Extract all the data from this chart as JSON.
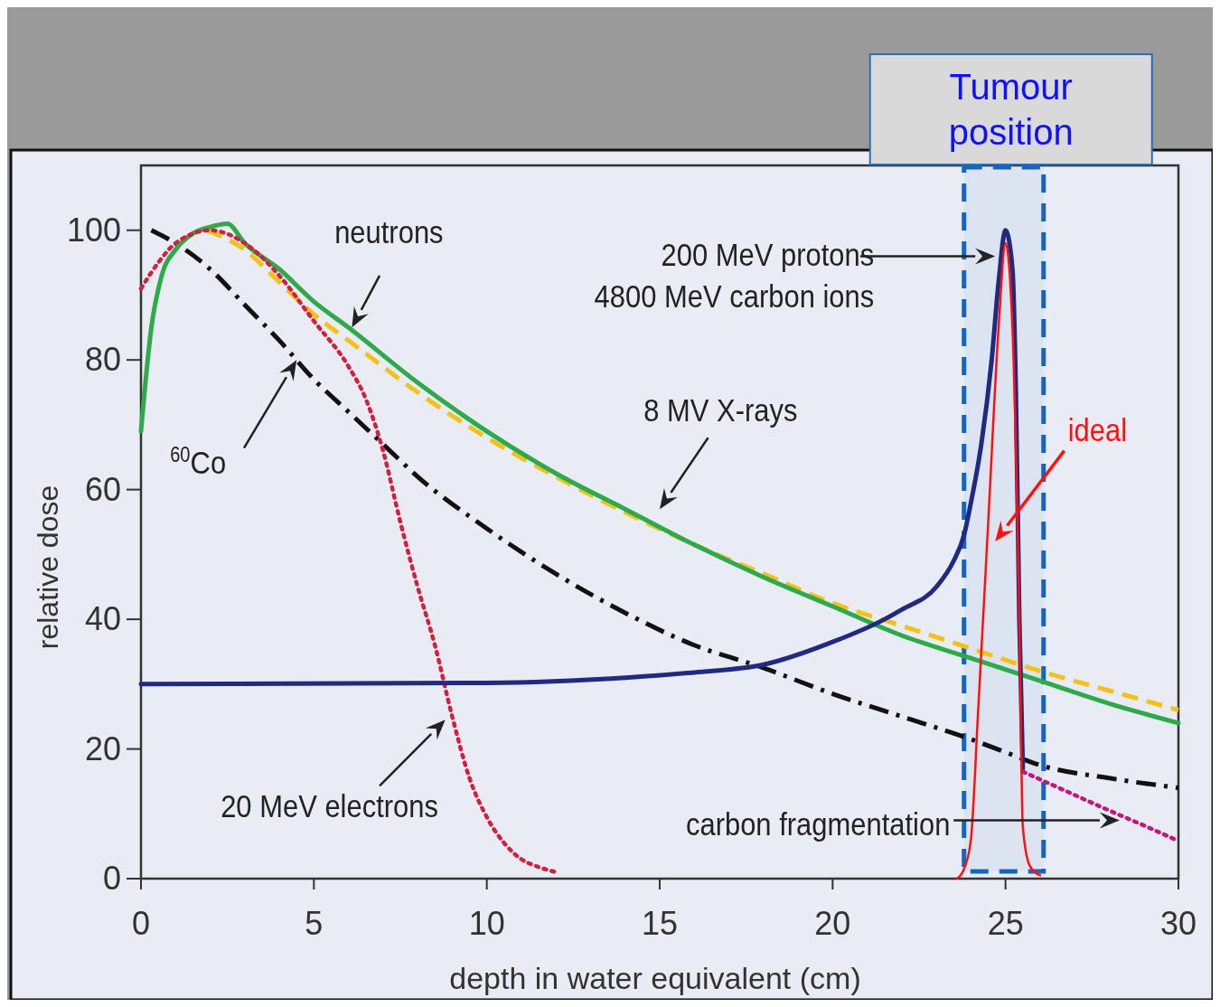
{
  "chart_data": {
    "type": "line",
    "xlabel": "depth in water equivalent (cm)",
    "ylabel": "relative dose",
    "xlim": [
      0,
      30
    ],
    "ylim": [
      0,
      110
    ],
    "xticks": [
      0,
      5,
      10,
      15,
      20,
      25,
      30
    ],
    "yticks": [
      0,
      20,
      40,
      60,
      80,
      100
    ],
    "grid": false,
    "marker": "none",
    "series": [
      {
        "color": "#111111",
        "line_style": "dashdot",
        "x": [
          0.3,
          1,
          2,
          3,
          4,
          5,
          6,
          7,
          8,
          10,
          12,
          14,
          16,
          18,
          20,
          22,
          24,
          25,
          26,
          28,
          30
        ],
        "values": [
          100,
          98,
          94,
          88.5,
          83,
          77,
          72,
          67,
          62,
          54,
          47,
          41,
          36,
          32.5,
          28.5,
          25,
          21.5,
          19.5,
          17.5,
          15.5,
          14
        ]
      },
      {
        "color": "#f2c21b",
        "line_style": "dashed",
        "x": [
          1.9,
          3,
          4,
          5,
          6,
          8,
          10,
          12,
          14,
          16,
          18,
          20,
          22,
          24,
          26,
          28,
          30
        ],
        "values": [
          100,
          97,
          92,
          87,
          83,
          75,
          68,
          62,
          56.5,
          51.5,
          47,
          42.5,
          39,
          35.5,
          32,
          29,
          26
        ]
      },
      {
        "color": "#2eaa4a",
        "line_style": "solid",
        "x": [
          0,
          0.3,
          0.6,
          1,
          1.5,
          2,
          2.5,
          3,
          4,
          5,
          6,
          8,
          10,
          12,
          14,
          16,
          18,
          20,
          22,
          24,
          26,
          28,
          30
        ],
        "values": [
          69,
          85,
          93,
          97,
          99.5,
          100.5,
          101,
          98,
          94,
          89,
          85,
          76.5,
          69,
          62.5,
          57,
          51.5,
          46.5,
          42,
          37.5,
          34,
          30.5,
          27,
          24
        ]
      },
      {
        "color": "#d0213d",
        "line_style": "dotted",
        "x": [
          0,
          0.5,
          1,
          2,
          3,
          4,
          5,
          6,
          6.5,
          7,
          7.5,
          8,
          8.5,
          9,
          9.5,
          10,
          10.5,
          11,
          11.5,
          12
        ],
        "values": [
          91,
          95,
          98,
          100,
          98,
          93,
          86,
          79,
          74,
          66,
          55,
          45,
          36,
          25,
          15.5,
          9.5,
          5.5,
          3,
          1.8,
          1
        ]
      },
      {
        "color": "#1f2a80",
        "line_style": "solid",
        "x": [
          0,
          10,
          14,
          16,
          18,
          20,
          21.5,
          22,
          23,
          23.5,
          23.8,
          24,
          24.3,
          24.6,
          24.8,
          25,
          25.2,
          25.3,
          25.4,
          25.5
        ],
        "values": [
          30,
          30.2,
          31,
          31.8,
          33,
          36.5,
          40,
          41.5,
          45,
          49,
          53,
          58,
          67,
          80,
          92,
          100,
          94,
          75,
          40,
          17
        ]
      },
      {
        "color": "#c2187a",
        "line_style": "dotted",
        "x": [
          25.5,
          26,
          27,
          28,
          29,
          30
        ],
        "values": [
          16.5,
          15.3,
          12.9,
          10.5,
          8.2,
          5.8
        ]
      },
      {
        "color": "#ff1010",
        "line_style": "solid",
        "x": [
          23.6,
          23.8,
          24,
          24.2,
          24.5,
          24.8,
          25,
          25.2,
          25.4,
          25.5,
          25.7,
          26
        ],
        "values": [
          0,
          1.5,
          6,
          25,
          55,
          85,
          98,
          85,
          40,
          8,
          2,
          0.5
        ]
      }
    ],
    "bands": [
      {
        "axis": "x",
        "from": 23.8,
        "to": 26.1,
        "label": "Tumour position",
        "color": "#1565c0"
      }
    ],
    "annotations": [
      "neutrons",
      "$^{60}$Co",
      "8 MV X-rays",
      "200 MeV protons\n4800 MeV carbon ions",
      "20 MeV electrons",
      "ideal",
      "carbon fragmentation"
    ]
  }
}
